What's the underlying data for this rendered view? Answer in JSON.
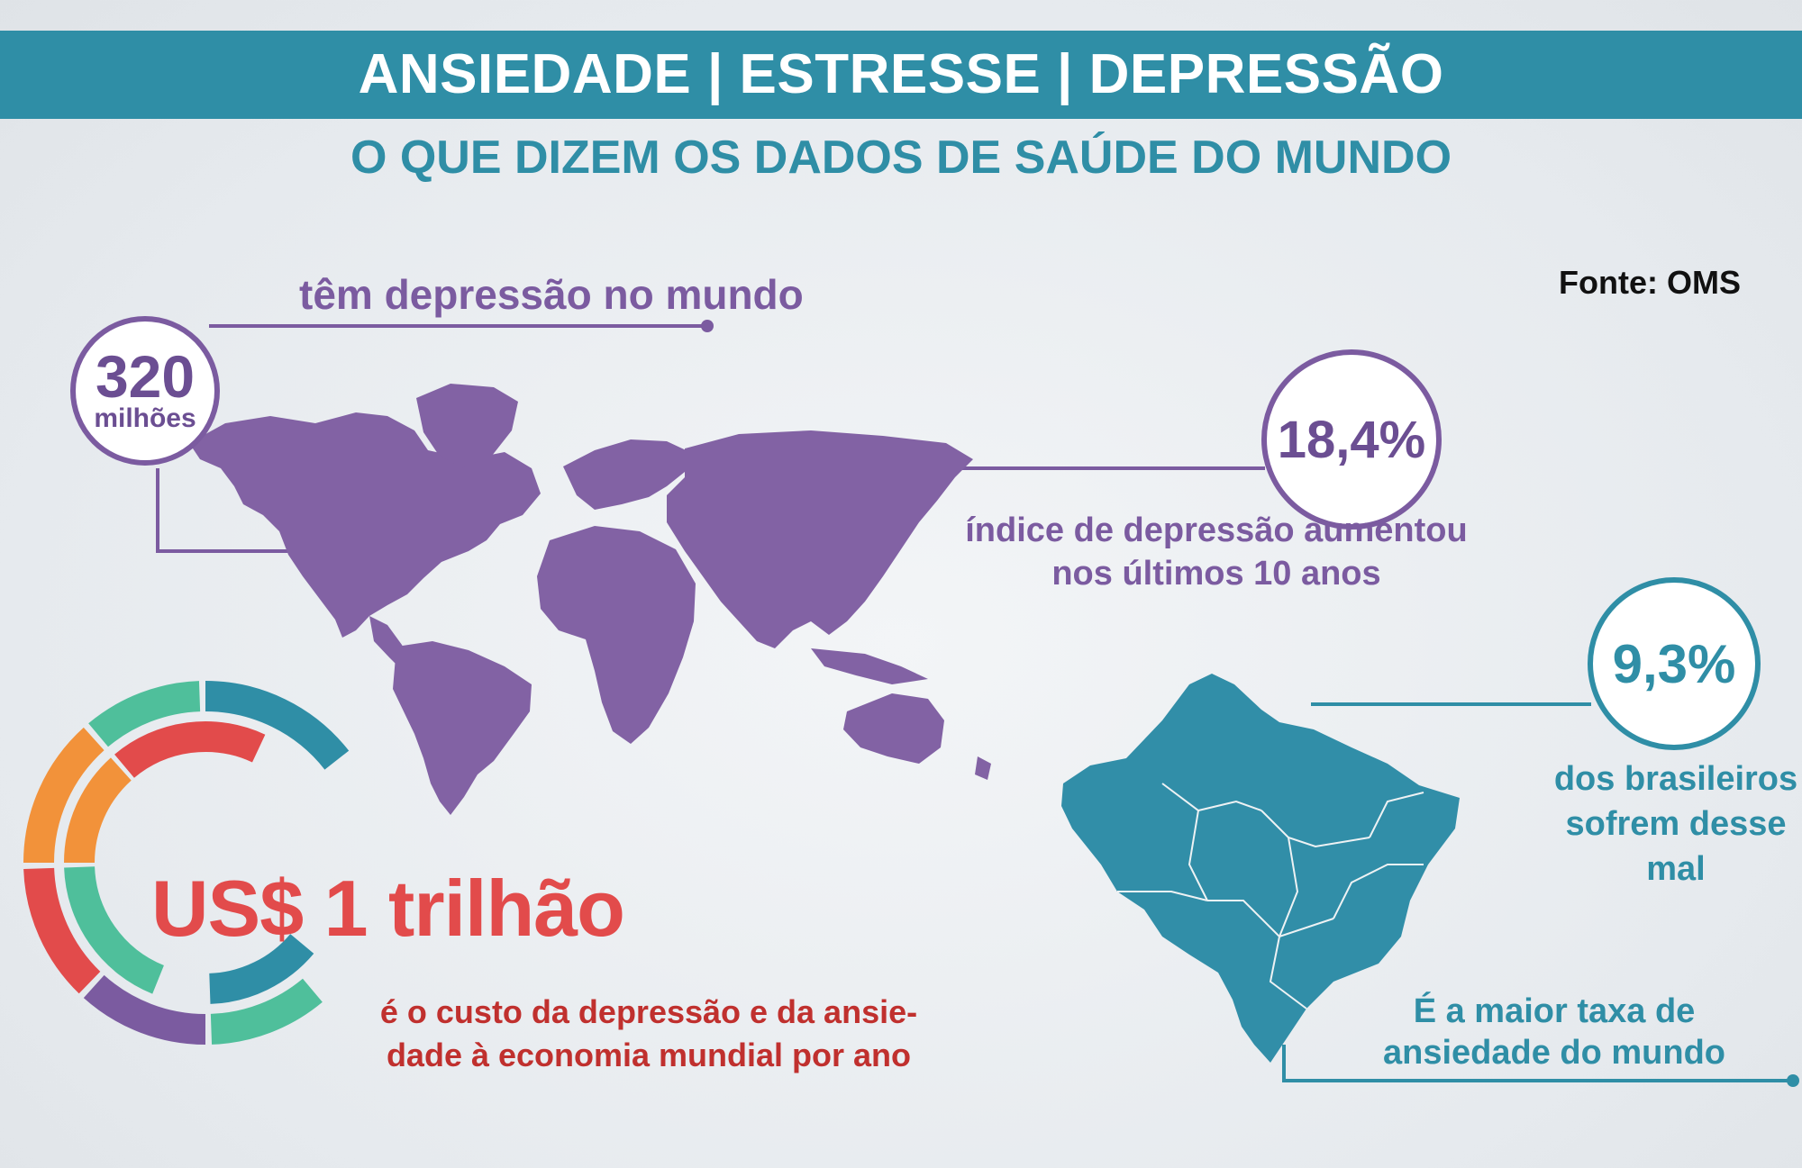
{
  "header": {
    "title": "ANSIEDADE | ESTRESSE | DEPRESSÃO",
    "subtitle": "O QUE DIZEM OS DADOS DE SAÚDE DO MUNDO"
  },
  "source": "Fonte: OMS",
  "stats": {
    "depression_count": {
      "number": "320",
      "unit": "milhões",
      "label": "têm depressão no mundo"
    },
    "depression_increase": {
      "value": "18,4%",
      "label_line1": "índice de depressão aumentou",
      "label_line2": "nos últimos 10 anos"
    },
    "brazil_rate": {
      "value": "9,3%",
      "label_line1": "dos brasileiros",
      "label_line2": "sofrem desse",
      "label_line3": "mal",
      "note_line1": "É a maior taxa de",
      "note_line2": "ansiedade do mundo"
    },
    "economic_cost": {
      "value": "US$ 1 trilhão",
      "label_line1": "é o custo da depressão e da ansie-",
      "label_line2": "dade à economia mundial por ano"
    }
  },
  "colors": {
    "teal": "#2f8ea6",
    "purple": "#7b5ba0",
    "red": "#e24b4b",
    "dark_red": "#c0302e",
    "orange": "#f2923a",
    "green": "#4fbf9b",
    "map_purple": "#8262a4",
    "brazil_teal": "#318ea8"
  }
}
